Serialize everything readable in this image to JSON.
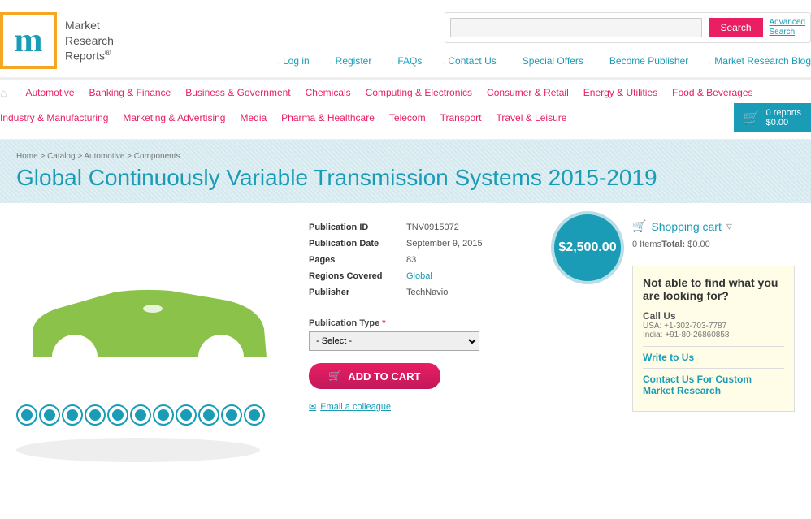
{
  "logo": {
    "letter": "m",
    "text": "Market\nResearch\nReports",
    "reg": "®"
  },
  "search": {
    "placeholder": "",
    "button": "Search",
    "advanced": "Advanced\nSearch"
  },
  "top_nav": [
    "Log in",
    "Register",
    "FAQs",
    "Contact Us",
    "Special Offers",
    "Become Publisher",
    "Market Research Blog"
  ],
  "main_nav": [
    "Automotive",
    "Banking & Finance",
    "Business & Government",
    "Chemicals",
    "Computing & Electronics",
    "Consumer & Retail",
    "Energy & Utilities",
    "Food & Beverages",
    "Industry & Manufacturing",
    "Marketing & Advertising",
    "Media",
    "Pharma & Healthcare",
    "Telecom",
    "Transport",
    "Travel & Leisure"
  ],
  "cart_box": {
    "lines": "0 reports\n$0.00"
  },
  "breadcrumb": "Home > Catalog > Automotive > Components",
  "page_title": "Global Continuously Variable Transmission Systems 2015-2019",
  "details": {
    "rows": [
      {
        "label": "Publication ID",
        "value": "TNV0915072"
      },
      {
        "label": "Publication Date",
        "value": "September 9, 2015"
      },
      {
        "label": "Pages",
        "value": "83"
      },
      {
        "label": "Regions Covered",
        "value": "Global",
        "link": true
      },
      {
        "label": "Publisher",
        "value": "TechNavio"
      }
    ]
  },
  "price": "$2,500.00",
  "pub_type": {
    "label": "Publication Type",
    "placeholder": "- Select -"
  },
  "add_cart": "ADD TO CART",
  "email_link": "Email a colleague",
  "shopping_cart": {
    "title": "Shopping cart",
    "items": "0 Items",
    "total_label": "Total:",
    "total": "$0.00"
  },
  "help_box": {
    "title": "Not able to find what you are looking for?",
    "call_label": "Call Us",
    "usa": "USA: +1-302-703-7787",
    "india": "India: +91-80-26860858",
    "write": "Write to Us",
    "custom": "Contact Us For Custom Market Research"
  },
  "colors": {
    "accent": "#1a9cb7",
    "pink": "#e91e63",
    "green": "#8bc34a",
    "orange": "#f5a623",
    "help_bg": "#fffde7"
  }
}
